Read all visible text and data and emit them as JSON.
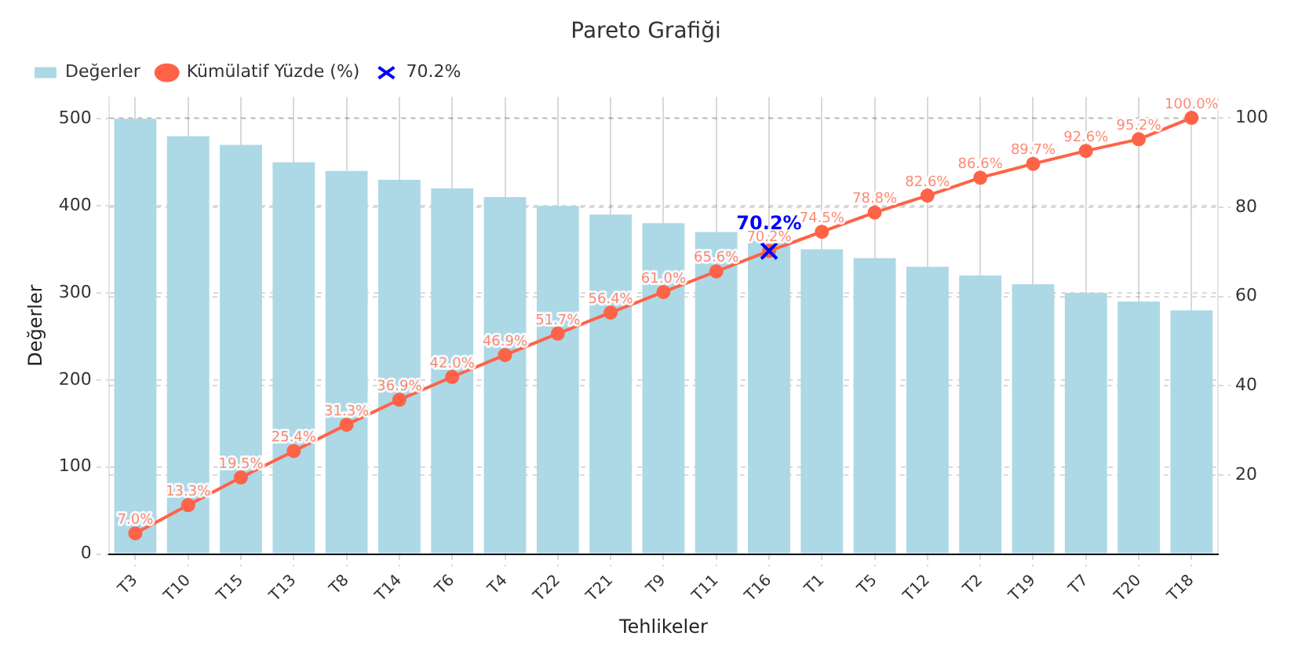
{
  "chart_data": {
    "type": "bar",
    "title": "Pareto Grafiği",
    "xlabel": "Tehlikeler",
    "ylabel": "Değerler",
    "categories": [
      "T3",
      "T10",
      "T15",
      "T13",
      "T8",
      "T14",
      "T6",
      "T4",
      "T22",
      "T21",
      "T9",
      "T11",
      "T16",
      "T1",
      "T5",
      "T12",
      "T2",
      "T19",
      "T7",
      "T20",
      "T18"
    ],
    "series": [
      {
        "name": "Değerler",
        "color": "#add8e6",
        "values": [
          500,
          480,
          470,
          450,
          440,
          430,
          420,
          410,
          400,
          390,
          380,
          370,
          360,
          350,
          340,
          330,
          320,
          310,
          300,
          290,
          280
        ]
      },
      {
        "name": "Kümülatif Yüzde (%)",
        "type": "line",
        "axis": "y2",
        "color": "#ff6347",
        "marker": "circle",
        "line_style": "solid",
        "values": [
          7.0,
          13.3,
          19.5,
          25.4,
          31.3,
          36.9,
          42.0,
          46.9,
          51.7,
          56.4,
          61.0,
          65.6,
          70.2,
          74.5,
          78.8,
          82.6,
          86.6,
          89.7,
          92.6,
          95.2,
          100.0
        ],
        "value_labels": [
          "7.0%",
          "13.3%",
          "19.5%",
          "25.4%",
          "31.3%",
          "36.9%",
          "42.0%",
          "46.9%",
          "51.7%",
          "56.4%",
          "61.0%",
          "65.6%",
          "70.2%",
          "74.5%",
          "78.8%",
          "82.6%",
          "86.6%",
          "89.7%",
          "92.6%",
          "95.2%",
          "100.0%"
        ]
      },
      {
        "name": "70.2%",
        "type": "scatter",
        "axis": "y2",
        "color": "#0000ff",
        "marker": "cross",
        "x": [
          "T16"
        ],
        "values": [
          70.2
        ]
      }
    ],
    "annotations": [
      "70.2%"
    ],
    "ylim": [
      0,
      525
    ],
    "yticks": [
      0,
      100,
      200,
      300,
      400,
      500
    ],
    "y2lim": [
      2.35,
      104.65
    ],
    "y2ticks": [
      20,
      40,
      60,
      80,
      100
    ],
    "grid": true,
    "legend": "top left"
  }
}
